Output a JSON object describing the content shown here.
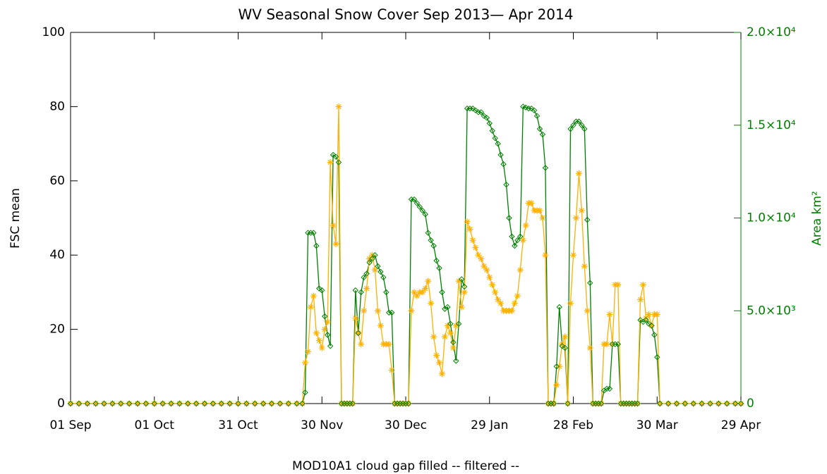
{
  "chart_data": {
    "type": "line",
    "title": "WV Seasonal Snow Cover Sep 2013— Apr 2014",
    "xlabel": "MOD10A1 cloud gap filled -- filtered --",
    "x": [
      0,
      3,
      6,
      9,
      12,
      15,
      18,
      21,
      24,
      27,
      30,
      33,
      36,
      39,
      42,
      45,
      48,
      51,
      54,
      57,
      60,
      63,
      66,
      69,
      72,
      75,
      78,
      81,
      83,
      84,
      85,
      86,
      87,
      88,
      89,
      90,
      91,
      92,
      93,
      94,
      95,
      96,
      97,
      98,
      99,
      100,
      101,
      102,
      103,
      104,
      105,
      106,
      107,
      108,
      109,
      110,
      111,
      112,
      113,
      114,
      115,
      116,
      117,
      118,
      119,
      120,
      121,
      122,
      123,
      124,
      125,
      126,
      127,
      128,
      129,
      130,
      131,
      132,
      133,
      134,
      135,
      136,
      137,
      138,
      139,
      140,
      141,
      142,
      143,
      144,
      145,
      146,
      147,
      148,
      149,
      150,
      151,
      152,
      153,
      154,
      155,
      156,
      157,
      158,
      159,
      160,
      161,
      162,
      163,
      164,
      165,
      166,
      167,
      168,
      169,
      170,
      171,
      172,
      173,
      174,
      175,
      176,
      177,
      178,
      179,
      180,
      181,
      182,
      183,
      184,
      185,
      186,
      187,
      188,
      189,
      190,
      191,
      192,
      193,
      194,
      195,
      196,
      197,
      198,
      199,
      200,
      201,
      202,
      203,
      204,
      205,
      206,
      207,
      208,
      209,
      210,
      211,
      214,
      217,
      220,
      223,
      226,
      229,
      232,
      235,
      238,
      240
    ],
    "series": [
      {
        "name": "FSC mean",
        "color": "#ffb000",
        "values": [
          0,
          0,
          0,
          0,
          0,
          0,
          0,
          0,
          0,
          0,
          0,
          0,
          0,
          0,
          0,
          0,
          0,
          0,
          0,
          0,
          0,
          0,
          0,
          0,
          0,
          0,
          0,
          0,
          0,
          11,
          14,
          26,
          29,
          19,
          17,
          15,
          20,
          22,
          65,
          48,
          43,
          80,
          0,
          0,
          0,
          0,
          0,
          23,
          19,
          16,
          25,
          31,
          39,
          40,
          36,
          25,
          21,
          16,
          16,
          16,
          9,
          0,
          0,
          0,
          0,
          0,
          0,
          25,
          30,
          29,
          30,
          30,
          31,
          33,
          27,
          18,
          13,
          11,
          8,
          18,
          21,
          19,
          15,
          21,
          33,
          26,
          30,
          49,
          47,
          44,
          42,
          40,
          39,
          37,
          36,
          34,
          32,
          30,
          28,
          27,
          25,
          25,
          25,
          25,
          27,
          29,
          36,
          44,
          48,
          54,
          54,
          52,
          52,
          52,
          50,
          40,
          0,
          0,
          0,
          5,
          10,
          16,
          18,
          0,
          27,
          40,
          50,
          62,
          52,
          37,
          25,
          15,
          0,
          0,
          0,
          0,
          16,
          16,
          24,
          16,
          32,
          32,
          0,
          0,
          0,
          0,
          0,
          0,
          0,
          28,
          32,
          23,
          24,
          21,
          24,
          24,
          0,
          0,
          0,
          0,
          0,
          0,
          0,
          0,
          0,
          0,
          0
        ]
      },
      {
        "name": "Area km²",
        "color": "#008000",
        "axis": "y2",
        "values": [
          0,
          0,
          0,
          0,
          0,
          0,
          0,
          0,
          0,
          0,
          0,
          0,
          0,
          0,
          0,
          0,
          0,
          0,
          0,
          0,
          0,
          0,
          0,
          0,
          0,
          0,
          0,
          0,
          0,
          600,
          9200,
          9200,
          9200,
          8500,
          6200,
          6100,
          4700,
          3700,
          3100,
          13400,
          13300,
          13000,
          0,
          0,
          0,
          0,
          0,
          6100,
          3800,
          6000,
          6800,
          7000,
          7600,
          7800,
          8000,
          7400,
          7100,
          6800,
          6000,
          4900,
          4900,
          0,
          0,
          0,
          0,
          0,
          0,
          11000,
          11000,
          10800,
          10600,
          10400,
          10200,
          9200,
          8800,
          8500,
          7700,
          7300,
          6000,
          5100,
          5200,
          4300,
          3300,
          2300,
          4300,
          6700,
          6300,
          15900,
          15900,
          15900,
          15800,
          15700,
          15700,
          15500,
          15400,
          15100,
          14700,
          14300,
          14000,
          13400,
          12900,
          11800,
          10000,
          9000,
          8500,
          8800,
          9000,
          16000,
          15950,
          15900,
          15900,
          15800,
          15500,
          14800,
          14500,
          12700,
          0,
          0,
          0,
          2000,
          5200,
          3100,
          3000,
          0,
          14800,
          15000,
          15200,
          15200,
          15000,
          14800,
          9900,
          6500,
          0,
          0,
          0,
          0,
          700,
          800,
          800,
          3200,
          3200,
          3200,
          0,
          0,
          0,
          0,
          0,
          0,
          0,
          4500,
          4400,
          4500,
          4300,
          4200,
          3700,
          2500,
          0,
          0,
          0,
          0,
          0,
          0,
          0,
          0,
          0,
          0,
          0
        ]
      }
    ],
    "xlim": [
      0,
      240
    ],
    "xticks": [
      {
        "value": 0,
        "label": "01 Sep"
      },
      {
        "value": 30,
        "label": "01 Oct"
      },
      {
        "value": 60,
        "label": "31 Oct"
      },
      {
        "value": 90,
        "label": "30 Nov"
      },
      {
        "value": 120,
        "label": "30 Dec"
      },
      {
        "value": 150,
        "label": "29 Jan"
      },
      {
        "value": 180,
        "label": "28 Feb"
      },
      {
        "value": 210,
        "label": "30 Mar"
      },
      {
        "value": 240,
        "label": "29 Apr"
      }
    ],
    "ylim": [
      0,
      100
    ],
    "yticks": [
      0,
      20,
      40,
      60,
      80,
      100
    ],
    "y2lim": [
      0,
      20000
    ],
    "y2ticks": [
      0,
      {
        "value": 5000,
        "label": "5.0×10³"
      },
      {
        "value": 10000,
        "label": "1.0×10⁴"
      },
      {
        "value": 15000,
        "label": "1.5×10⁴"
      },
      {
        "value": 20000,
        "label": "2.0×10⁴"
      }
    ],
    "grid": false
  }
}
